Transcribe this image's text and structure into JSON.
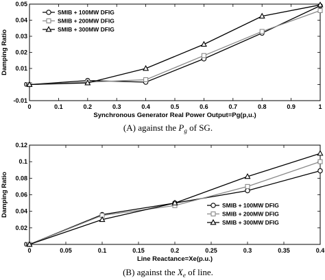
{
  "chart_data": [
    {
      "type": "line",
      "x": [
        0,
        0.2,
        0.4,
        0.6,
        0.8,
        1.0
      ],
      "xlim": [
        0,
        1
      ],
      "ylim": [
        -0.01,
        0.05
      ],
      "xticks": [
        "0",
        "0.1",
        "0.2",
        "0.3",
        "0.4",
        "0.5",
        "0.6",
        "0.7",
        "0.8",
        "0.9",
        "1"
      ],
      "yticks": [
        "-0.01",
        "0",
        "0.01",
        "0.02",
        "0.03",
        "0.04",
        "0.05"
      ],
      "xlabel": "Synchronous Generator Real Power Output=Pg(p,u.)",
      "ylabel": "Damping Ratio",
      "legend_position": "top-left",
      "series": [
        {
          "name": "SMIB + 100MW DFIG",
          "marker": "circle",
          "color": "#000000",
          "values": [
            0,
            0.0025,
            0.0015,
            0.016,
            0.032,
            0.049
          ]
        },
        {
          "name": "SMIB + 200MW DFIG",
          "marker": "square",
          "color": "#888888",
          "values": [
            0,
            0.0015,
            0.003,
            0.018,
            0.033,
            0.046
          ]
        },
        {
          "name": "SMIB + 300MW DFIG",
          "marker": "triangle",
          "color": "#000000",
          "values": [
            0,
            0.001,
            0.01,
            0.025,
            0.0425,
            0.0495
          ]
        }
      ],
      "caption_prefix": "(A) against the ",
      "caption_var": "P",
      "caption_sub": "g",
      "caption_suffix": " of SG."
    },
    {
      "type": "line",
      "x": [
        0,
        0.1,
        0.2,
        0.3,
        0.4
      ],
      "xlim": [
        0,
        0.4
      ],
      "ylim": [
        0,
        0.12
      ],
      "xticks": [
        "0",
        "0.05",
        "0.1",
        "0.15",
        "0.2",
        "0.25",
        "0.3",
        "0.35",
        "0.4"
      ],
      "yticks": [
        "0",
        "0.02",
        "0.04",
        "0.06",
        "0.08",
        "0.1",
        "0.12"
      ],
      "xlabel": "Line Reactance=Xe(p.u.)",
      "ylabel": "Damping Ratio",
      "legend_position": "bottom-right",
      "series": [
        {
          "name": "SMIB + 100MW DFIG",
          "marker": "circle",
          "color": "#000000",
          "values": [
            0,
            0.036,
            0.05,
            0.065,
            0.089
          ]
        },
        {
          "name": "SMIB + 200MW DFIG",
          "marker": "square",
          "color": "#888888",
          "values": [
            0,
            0.035,
            0.047,
            0.07,
            0.1
          ]
        },
        {
          "name": "SMIB + 300MW DFIG",
          "marker": "triangle",
          "color": "#000000",
          "values": [
            0,
            0.03,
            0.05,
            0.082,
            0.11
          ]
        }
      ],
      "caption_prefix": "(B) against the ",
      "caption_var": "X",
      "caption_sub": "e",
      "caption_suffix": " of line."
    }
  ]
}
